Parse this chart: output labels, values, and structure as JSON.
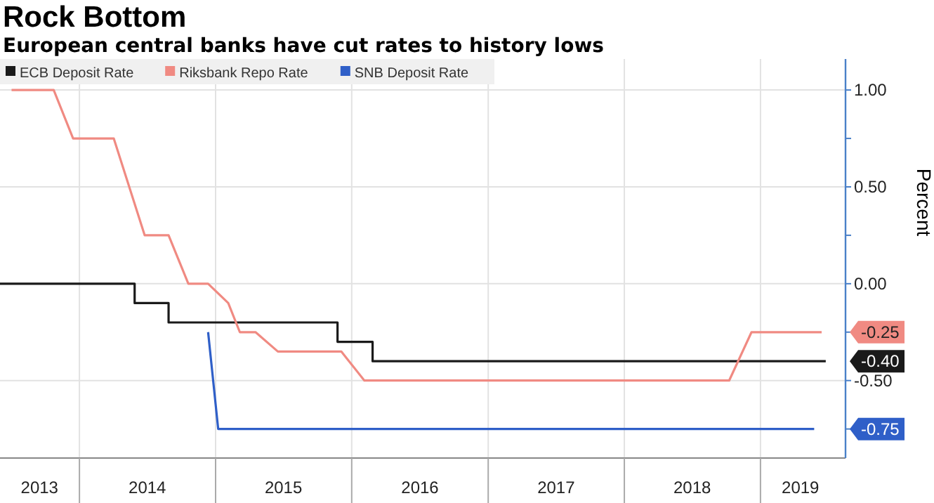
{
  "chart_data": {
    "type": "line",
    "title": "Rock Bottom",
    "subtitle": "European central banks have cut rates to history lows",
    "ylabel": "Percent",
    "xlim": [
      "2013-06-02",
      "2019-08-17"
    ],
    "ylim": [
      -0.9,
      1.16
    ],
    "xticks": [
      {
        "value": "2013-09-16",
        "label": "2013"
      },
      {
        "value": "2014-01-01",
        "label": null
      },
      {
        "value": "2014-07-02",
        "label": "2014"
      },
      {
        "value": "2015-01-01",
        "label": null
      },
      {
        "value": "2015-07-02",
        "label": "2015"
      },
      {
        "value": "2016-01-01",
        "label": null
      },
      {
        "value": "2016-07-02",
        "label": "2016"
      },
      {
        "value": "2017-01-01",
        "label": null
      },
      {
        "value": "2017-07-02",
        "label": "2017"
      },
      {
        "value": "2018-01-01",
        "label": null
      },
      {
        "value": "2018-07-02",
        "label": "2018"
      },
      {
        "value": "2019-01-01",
        "label": null
      },
      {
        "value": "2019-04-18",
        "label": "2019"
      }
    ],
    "yticks": [
      {
        "value": 1,
        "label": "1.00"
      },
      {
        "value": 0.75,
        "label": null
      },
      {
        "value": 0.5,
        "label": "0.50"
      },
      {
        "value": 0.25,
        "label": null
      },
      {
        "value": 0,
        "label": "0.00"
      },
      {
        "value": -0.25,
        "label": null
      },
      {
        "value": -0.5,
        "label": "-0.50"
      },
      {
        "value": -0.75,
        "label": null
      }
    ],
    "grid": true,
    "legend": "top left",
    "series": [
      {
        "name": "ECB Deposit Rate",
        "type": "step",
        "color": "#1a1a1a",
        "x": [
          "2013-06-02",
          "2014-05-29",
          "2014-08-28",
          "2015-11-24",
          "2016-02-26",
          "2019-06-25"
        ],
        "values": [
          0,
          -0.1,
          -0.2,
          -0.3,
          -0.4,
          -0.4
        ]
      },
      {
        "name": "Riksbank Repo Rate",
        "color": "#f08a82",
        "x": [
          "2013-07-03",
          "2013-10-24",
          "2013-12-15",
          "2014-04-03",
          "2014-06-25",
          "2014-08-28",
          "2014-10-20",
          "2014-12-12",
          "2015-02-04",
          "2015-03-07",
          "2015-04-18",
          "2015-06-17",
          "2015-12-04",
          "2016-02-04",
          "2018-10-09",
          "2018-12-08",
          "2019-06-14"
        ],
        "values": [
          1,
          1,
          0.75,
          0.75,
          0.25,
          0.25,
          0,
          0,
          -0.1,
          -0.25,
          -0.25,
          -0.35,
          -0.35,
          -0.5,
          -0.5,
          -0.25,
          -0.25
        ]
      },
      {
        "name": "SNB Deposit Rate",
        "color": "#2f5fc8",
        "x": [
          "2014-12-12",
          "2015-01-08",
          "2019-05-25"
        ],
        "values": [
          -0.25,
          -0.75,
          -0.75
        ]
      }
    ],
    "annotations": [
      {
        "text": "-0.40",
        "x": "2019-06-25",
        "y": -0.4
      },
      {
        "text": "-0.25",
        "x": "2019-06-14",
        "y": -0.25
      },
      {
        "text": "-0.75",
        "x": "2019-05-25",
        "y": -0.75
      }
    ]
  }
}
